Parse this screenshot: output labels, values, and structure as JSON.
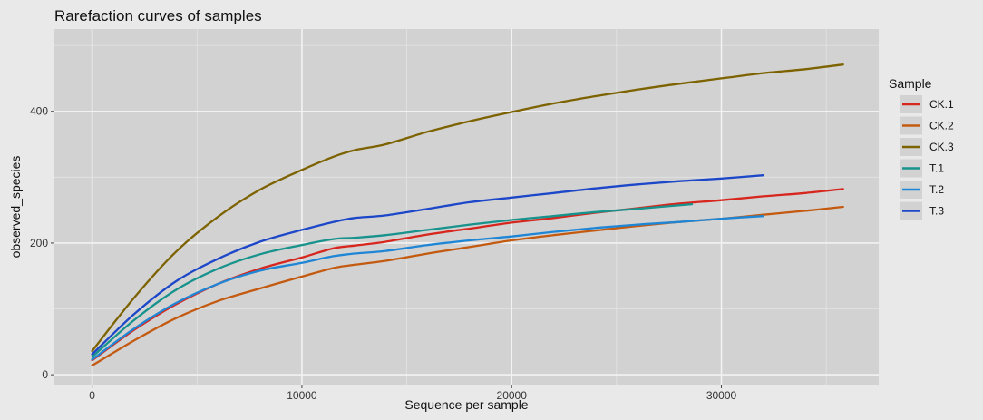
{
  "chart_data": {
    "type": "line",
    "title": "Rarefaction curves of samples",
    "xlabel": "Sequence per sample",
    "ylabel": "observed_species",
    "xlim": [
      -1800,
      37500
    ],
    "ylim": [
      -15,
      525
    ],
    "xticks": [
      0,
      10000,
      20000,
      30000
    ],
    "xtick_labels": [
      "0",
      "10000",
      "20000",
      "30000"
    ],
    "yticks": [
      0,
      200,
      400
    ],
    "ytick_labels": [
      "0",
      "200",
      "400"
    ],
    "grid": true,
    "legend": {
      "title": "Sample",
      "position": "right"
    },
    "series": [
      {
        "name": "CK.1",
        "color": "#d7261e",
        "points": [
          [
            0,
            22
          ],
          [
            2000,
            68
          ],
          [
            4000,
            107
          ],
          [
            6000,
            138
          ],
          [
            8000,
            161
          ],
          [
            10000,
            178
          ],
          [
            11500,
            192
          ],
          [
            12500,
            196
          ],
          [
            14000,
            202
          ],
          [
            16000,
            213
          ],
          [
            18000,
            222
          ],
          [
            20000,
            231
          ],
          [
            22000,
            238
          ],
          [
            24000,
            246
          ],
          [
            26000,
            253
          ],
          [
            28000,
            260
          ],
          [
            30000,
            265
          ],
          [
            32000,
            271
          ],
          [
            34000,
            276
          ],
          [
            35800,
            282
          ]
        ]
      },
      {
        "name": "CK.2",
        "color": "#c45a10",
        "points": [
          [
            0,
            14
          ],
          [
            2000,
            52
          ],
          [
            4000,
            86
          ],
          [
            6000,
            112
          ],
          [
            8000,
            131
          ],
          [
            10000,
            149
          ],
          [
            11500,
            162
          ],
          [
            12500,
            167
          ],
          [
            14000,
            173
          ],
          [
            16000,
            184
          ],
          [
            18000,
            194
          ],
          [
            20000,
            204
          ],
          [
            22000,
            212
          ],
          [
            24000,
            219
          ],
          [
            26000,
            226
          ],
          [
            28000,
            232
          ],
          [
            30000,
            237
          ],
          [
            32000,
            243
          ],
          [
            34000,
            249
          ],
          [
            35800,
            255
          ]
        ]
      },
      {
        "name": "CK.3",
        "color": "#7d6200",
        "points": [
          [
            0,
            36
          ],
          [
            2000,
            117
          ],
          [
            4000,
            187
          ],
          [
            6000,
            240
          ],
          [
            8000,
            281
          ],
          [
            10000,
            311
          ],
          [
            11500,
            331
          ],
          [
            12500,
            341
          ],
          [
            14000,
            350
          ],
          [
            16000,
            369
          ],
          [
            18000,
            385
          ],
          [
            20000,
            399
          ],
          [
            22000,
            412
          ],
          [
            24000,
            423
          ],
          [
            26000,
            433
          ],
          [
            28000,
            442
          ],
          [
            30000,
            450
          ],
          [
            32000,
            458
          ],
          [
            34000,
            464
          ],
          [
            35800,
            471
          ]
        ]
      },
      {
        "name": "T.1",
        "color": "#17928c",
        "points": [
          [
            0,
            27
          ],
          [
            2000,
            83
          ],
          [
            4000,
            129
          ],
          [
            6000,
            161
          ],
          [
            8000,
            183
          ],
          [
            10000,
            197
          ],
          [
            11500,
            206
          ],
          [
            12500,
            208
          ],
          [
            14000,
            212
          ],
          [
            16000,
            220
          ],
          [
            18000,
            228
          ],
          [
            20000,
            235
          ],
          [
            22000,
            241
          ],
          [
            24000,
            247
          ],
          [
            26000,
            252
          ],
          [
            28600,
            259
          ]
        ]
      },
      {
        "name": "T.2",
        "color": "#1f86d6",
        "points": [
          [
            0,
            23
          ],
          [
            2000,
            70
          ],
          [
            4000,
            109
          ],
          [
            6000,
            138
          ],
          [
            8000,
            158
          ],
          [
            10000,
            170
          ],
          [
            11500,
            180
          ],
          [
            12500,
            184
          ],
          [
            14000,
            188
          ],
          [
            16000,
            197
          ],
          [
            18000,
            204
          ],
          [
            20000,
            210
          ],
          [
            22000,
            217
          ],
          [
            24000,
            223
          ],
          [
            26000,
            228
          ],
          [
            28000,
            232
          ],
          [
            30000,
            237
          ],
          [
            32000,
            241
          ]
        ]
      },
      {
        "name": "T.3",
        "color": "#1d47c9",
        "points": [
          [
            0,
            31
          ],
          [
            2000,
            92
          ],
          [
            4000,
            142
          ],
          [
            6000,
            176
          ],
          [
            8000,
            202
          ],
          [
            10000,
            220
          ],
          [
            11500,
            232
          ],
          [
            12500,
            238
          ],
          [
            14000,
            242
          ],
          [
            16000,
            252
          ],
          [
            18000,
            262
          ],
          [
            20000,
            269
          ],
          [
            22000,
            276
          ],
          [
            24000,
            283
          ],
          [
            26000,
            289
          ],
          [
            28000,
            294
          ],
          [
            30000,
            298
          ],
          [
            32000,
            303
          ]
        ]
      }
    ]
  }
}
